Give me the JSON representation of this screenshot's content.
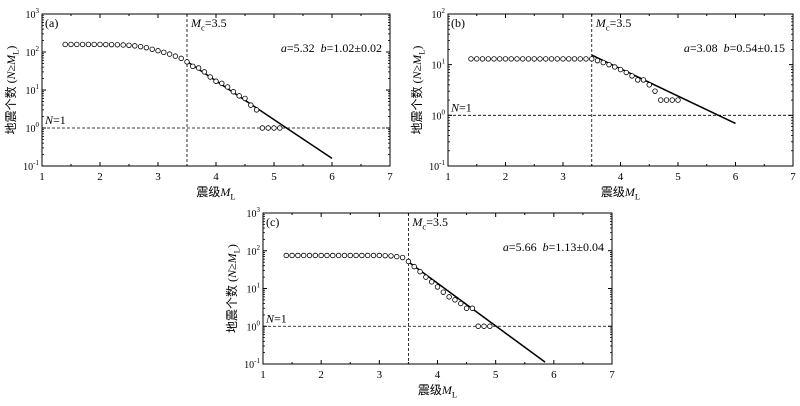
{
  "figure": {
    "y_tick_labels": [
      "10-1",
      "100",
      "101",
      "102",
      "103"
    ]
  },
  "chart_data": [
    {
      "type": "scatter",
      "panel_label": "(a)",
      "xlabel": "震级ML",
      "ylabel": "地震个数 (N≥ML)",
      "xlim": [
        1,
        7
      ],
      "ylim_log10": [
        -1,
        3
      ],
      "y_scale": "log",
      "x_ticks": [
        1,
        2,
        3,
        4,
        5,
        6,
        7
      ],
      "y_ticks": [
        "10-1",
        "100",
        "101",
        "102",
        "103"
      ],
      "mc_label": "Mc=3.5",
      "mc_value": 3.5,
      "n1_label": "N=1",
      "ab_text": "a=5.32  b=1.02±0.02",
      "fit": {
        "a": 5.32,
        "b": 1.02,
        "x_start": 3.5,
        "x_end": 6.0
      },
      "points": {
        "x": [
          1.4,
          1.5,
          1.6,
          1.7,
          1.8,
          1.9,
          2.0,
          2.1,
          2.2,
          2.3,
          2.4,
          2.5,
          2.6,
          2.7,
          2.8,
          2.9,
          3.0,
          3.1,
          3.2,
          3.3,
          3.4,
          3.5,
          3.6,
          3.7,
          3.8,
          3.9,
          4.0,
          4.1,
          4.2,
          4.3,
          4.4,
          4.5,
          4.6,
          4.7,
          4.8,
          4.9,
          5.0,
          5.1
        ],
        "y": [
          158,
          158,
          158,
          158,
          158,
          158,
          158,
          157,
          156,
          155,
          153,
          150,
          145,
          138,
          130,
          118,
          108,
          98,
          88,
          78,
          68,
          55,
          42,
          38,
          30,
          22,
          17,
          15,
          12,
          9,
          7,
          6,
          4,
          3,
          1,
          1,
          1,
          1
        ]
      }
    },
    {
      "type": "scatter",
      "panel_label": "(b)",
      "xlabel": "震级ML",
      "ylabel": "地震个数 (N≥ML)",
      "xlim": [
        1,
        7
      ],
      "ylim_log10": [
        -1,
        2
      ],
      "y_scale": "log",
      "x_ticks": [
        1,
        2,
        3,
        4,
        5,
        6,
        7
      ],
      "y_ticks": [
        "10-1",
        "100",
        "101",
        "102"
      ],
      "mc_label": "Mc=3.5",
      "mc_value": 3.5,
      "n1_label": "N=1",
      "ab_text": "a=3.08  b=0.54±0.15",
      "fit": {
        "a": 3.08,
        "b": 0.54,
        "x_start": 3.5,
        "x_end": 6.0
      },
      "points": {
        "x": [
          1.4,
          1.5,
          1.6,
          1.7,
          1.8,
          1.9,
          2.0,
          2.1,
          2.2,
          2.3,
          2.4,
          2.5,
          2.6,
          2.7,
          2.8,
          2.9,
          3.0,
          3.1,
          3.2,
          3.3,
          3.4,
          3.5,
          3.6,
          3.7,
          3.8,
          3.9,
          4.0,
          4.1,
          4.2,
          4.3,
          4.4,
          4.5,
          4.6,
          4.7,
          4.8,
          4.9,
          5.0
        ],
        "y": [
          13,
          13,
          13,
          13,
          13,
          13,
          13,
          13,
          13,
          13,
          13,
          13,
          13,
          13,
          13,
          13,
          13,
          13,
          13,
          13,
          13,
          13,
          12,
          11,
          10,
          9,
          8,
          7,
          6,
          5,
          5,
          4,
          3,
          2,
          2,
          2,
          2
        ]
      }
    },
    {
      "type": "scatter",
      "panel_label": "(c)",
      "xlabel": "震级ML",
      "ylabel": "地震个数 (N≥ML)",
      "xlim": [
        1,
        7
      ],
      "ylim_log10": [
        -1,
        3
      ],
      "y_scale": "log",
      "x_ticks": [
        1,
        2,
        3,
        4,
        5,
        6,
        7
      ],
      "y_ticks": [
        "10-1",
        "100",
        "101",
        "102",
        "103"
      ],
      "mc_label": "Mc=3.5",
      "mc_value": 3.5,
      "n1_label": "N=1",
      "ab_text": "a=5.66  b=1.13±0.04",
      "fit": {
        "a": 5.66,
        "b": 1.13,
        "x_start": 3.5,
        "x_end": 5.85
      },
      "points": {
        "x": [
          1.4,
          1.5,
          1.6,
          1.7,
          1.8,
          1.9,
          2.0,
          2.1,
          2.2,
          2.3,
          2.4,
          2.5,
          2.6,
          2.7,
          2.8,
          2.9,
          3.0,
          3.1,
          3.2,
          3.3,
          3.4,
          3.5,
          3.6,
          3.7,
          3.8,
          3.9,
          4.0,
          4.1,
          4.2,
          4.3,
          4.4,
          4.5,
          4.6,
          4.7,
          4.8,
          4.9
        ],
        "y": [
          75,
          75,
          75,
          75,
          75,
          75,
          75,
          75,
          75,
          75,
          75,
          75,
          75,
          75,
          75,
          75,
          75,
          74,
          73,
          70,
          66,
          52,
          38,
          28,
          20,
          15,
          11,
          8,
          6,
          5,
          4,
          3,
          3,
          1,
          1,
          1
        ]
      }
    }
  ]
}
